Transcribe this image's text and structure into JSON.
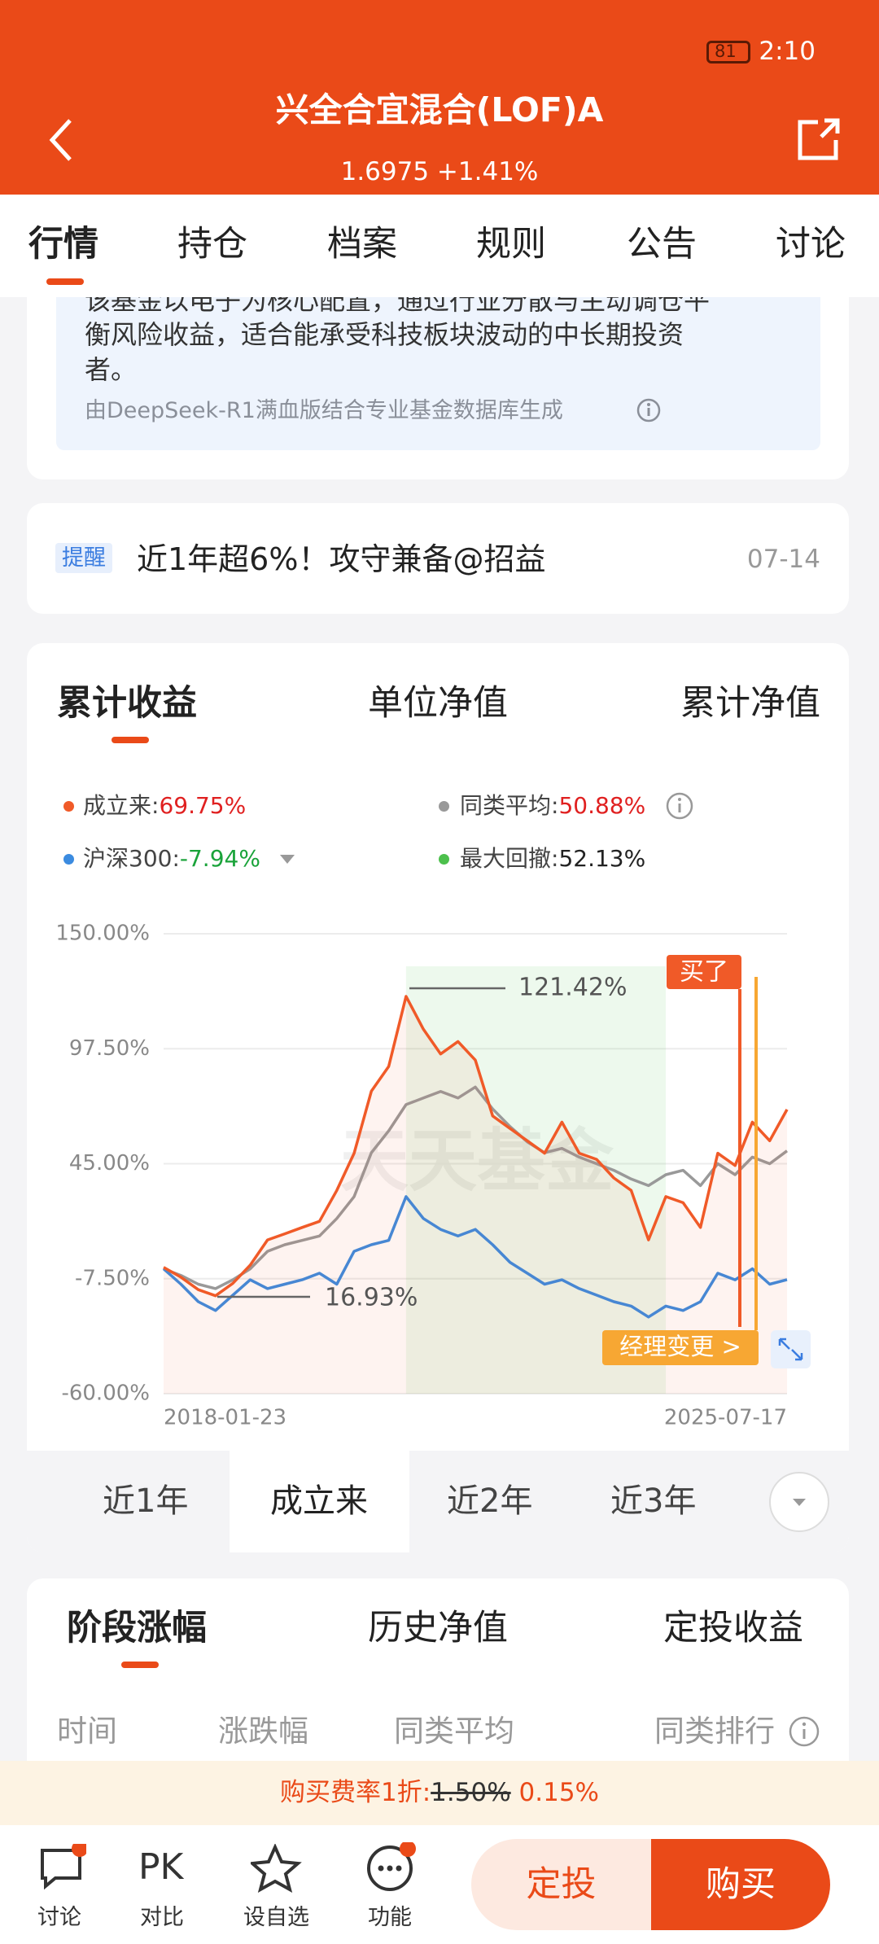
{
  "status_bar": {
    "time": "2:10",
    "battery": "81"
  },
  "header": {
    "title": "兴全合宜混合(LOF)A",
    "subtitle": "1.6975 +1.41%"
  },
  "tabs": [
    "行情",
    "持仓",
    "档案",
    "规则",
    "公告",
    "讨论"
  ],
  "summary": {
    "lines": [
      "该基金以电子为核心配置，通过行业分散与主动调仓平",
      "衡风险收益，适合能承受科技板块波动的中长期投资",
      "者。"
    ],
    "source": "由DeepSeek-R1满血版结合专业基金数据库生成"
  },
  "notice": {
    "tag": "提醒",
    "text": "近1年超6%！攻守兼备@招益",
    "date": "07-14"
  },
  "chart_tabs": [
    "累计收益",
    "单位净值",
    "累计净值"
  ],
  "legend": [
    {
      "label": "成立来:",
      "value": "69.75%",
      "color": "#f05a28",
      "value_color": "#e02020"
    },
    {
      "label": "同类平均:",
      "value": "50.88%",
      "color": "#999999",
      "value_color": "#e02020"
    },
    {
      "label": "沪深300:",
      "value": "-7.94%",
      "color": "#3b8be0",
      "value_color": "#1aa33a"
    },
    {
      "label": "最大回撤:",
      "value": "52.13%",
      "color": "#4cc04c",
      "value_color": "#222222"
    }
  ],
  "chart_data": {
    "type": "line",
    "categories": [
      "2018-01-23",
      null,
      null,
      null,
      null,
      null,
      null,
      null,
      null,
      null,
      null,
      null,
      null,
      null,
      null,
      null,
      null,
      null,
      null,
      null,
      null,
      null,
      null,
      null,
      null,
      null,
      null,
      null,
      null,
      null,
      null,
      null,
      null,
      null,
      null,
      null,
      "2025-07-17"
    ],
    "ylim": [
      -60,
      150
    ],
    "yticks": [
      {
        "value": -60,
        "label": "-60.00%"
      },
      {
        "value": -7.5,
        "label": "-7.50%"
      },
      {
        "value": 45,
        "label": "45.00%"
      },
      {
        "value": 97.5,
        "label": "97.50%"
      },
      {
        "value": 150,
        "label": "150.00%"
      }
    ],
    "grid": true,
    "series": [
      {
        "color": "#999999",
        "values": [
          -3,
          -6,
          -10,
          -12,
          -8,
          -3,
          5,
          8,
          10,
          12,
          20,
          30,
          50,
          60,
          72,
          75,
          78,
          75,
          80,
          70,
          62,
          55,
          50,
          52,
          48,
          45,
          42,
          38,
          35,
          40,
          42,
          35,
          45,
          40,
          48,
          45,
          50.88
        ]
      },
      {
        "color": "#3b8be0",
        "values": [
          -3,
          -10,
          -18,
          -22,
          -15,
          -8,
          -12,
          -10,
          -8,
          -5,
          -10,
          5,
          8,
          10,
          30,
          20,
          15,
          12,
          15,
          8,
          0,
          -5,
          -10,
          -8,
          -12,
          -15,
          -18,
          -20,
          -25,
          -20,
          -22,
          -18,
          -5,
          -8,
          -3,
          -10,
          -7.94
        ]
      },
      {
        "color": "#f05a28",
        "values": [
          -2.3,
          -6.8,
          -12.5,
          -15.3,
          -9.6,
          -1.3,
          10.2,
          13,
          15.9,
          18.7,
          32.8,
          49.8,
          78.1,
          89.4,
          121.4,
          106.4,
          95.1,
          100.8,
          92.3,
          66.8,
          61.1,
          55.5,
          49.8,
          64,
          49.8,
          47,
          38.5,
          32.8,
          10.2,
          30,
          27.2,
          15.9,
          49.8,
          44.2,
          64,
          55.5,
          69.75
        ]
      }
    ],
    "annotations": {
      "peak": "121.42%",
      "low": "16.93%",
      "buy": "买了",
      "manager": "经理变更 >",
      "watermark": "天天基金"
    }
  },
  "period_tabs": [
    "近1年",
    "成立来",
    "近2年",
    "近3年"
  ],
  "stage_tabs": [
    "阶段涨幅",
    "历史净值",
    "定投收益"
  ],
  "columns": [
    "时间",
    "涨跌幅",
    "同类平均",
    "同类排行"
  ],
  "fee": {
    "label": "购买费率1折:",
    "original": "1.50%",
    "discount": "0.15%"
  },
  "nav": [
    {
      "label": "讨论"
    },
    {
      "icon": "PK",
      "label": "对比"
    },
    {
      "label": "设自选"
    },
    {
      "label": "功能"
    }
  ],
  "buttons": [
    "定投",
    "购买"
  ]
}
